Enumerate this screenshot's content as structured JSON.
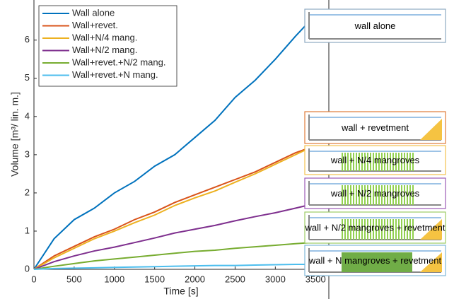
{
  "chart_data": {
    "type": "line",
    "x_label": "Time [s]",
    "y_label": "Volume [m³/ lin. m.]",
    "x": [
      0,
      250,
      500,
      750,
      1000,
      1250,
      1500,
      1750,
      2000,
      2250,
      2500,
      2750,
      3000,
      3250,
      3450
    ],
    "series": [
      {
        "name": "Wall alone",
        "color": "#0072bd",
        "values": [
          0,
          0.8,
          1.3,
          1.6,
          2.0,
          2.3,
          2.7,
          3.0,
          3.45,
          3.9,
          4.5,
          4.95,
          5.5,
          6.1,
          6.55
        ]
      },
      {
        "name": "Wall+revet.",
        "color": "#d95319",
        "values": [
          0,
          0.35,
          0.6,
          0.85,
          1.05,
          1.3,
          1.5,
          1.75,
          1.95,
          2.15,
          2.35,
          2.55,
          2.8,
          3.05,
          3.2
        ]
      },
      {
        "name": "Wall+N/4 mang.",
        "color": "#edb120",
        "values": [
          0,
          0.3,
          0.55,
          0.8,
          1.0,
          1.22,
          1.42,
          1.67,
          1.87,
          2.05,
          2.28,
          2.5,
          2.75,
          3.0,
          3.2
        ]
      },
      {
        "name": "Wall+N/2 mang.",
        "color": "#7e2f8e",
        "values": [
          0,
          0.2,
          0.35,
          0.48,
          0.58,
          0.7,
          0.82,
          0.95,
          1.05,
          1.15,
          1.27,
          1.38,
          1.48,
          1.6,
          1.7
        ]
      },
      {
        "name": "Wall+revet.+N/2 mang.",
        "color": "#77ac30",
        "values": [
          0,
          0.08,
          0.15,
          0.22,
          0.27,
          0.32,
          0.37,
          0.42,
          0.47,
          0.5,
          0.55,
          0.59,
          0.63,
          0.67,
          0.7
        ]
      },
      {
        "name": "Wall+revet.+N mang.",
        "color": "#4dbeee",
        "values": [
          0,
          0.02,
          0.03,
          0.04,
          0.05,
          0.06,
          0.07,
          0.08,
          0.09,
          0.1,
          0.1,
          0.11,
          0.12,
          0.13,
          0.13
        ]
      }
    ],
    "xlim": [
      0,
      3665
    ],
    "xticks": [
      0,
      500,
      1000,
      1500,
      2000,
      2500,
      3000,
      3500
    ],
    "ylim": [
      0,
      7.05
    ],
    "yticks": [
      0,
      1,
      2,
      3,
      4,
      5,
      6
    ],
    "legend": "upper left",
    "annotations": [
      "wall alone",
      "wall + revetment",
      "wall + N/4 mangroves",
      "wall + N/2 mangroves",
      "wall + N/2 mangroves + revetment",
      "wall + N mangroves + revetment"
    ]
  }
}
